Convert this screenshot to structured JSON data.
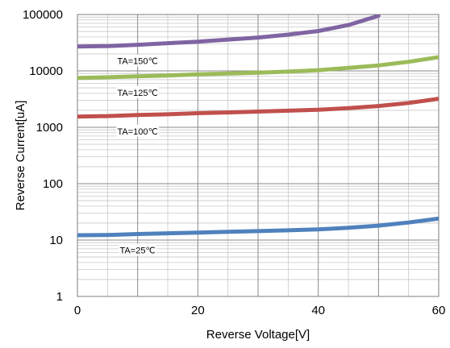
{
  "chart_data": {
    "type": "line",
    "xlabel": "Reverse Voltage[V]",
    "ylabel": "Reverse Current[uA]",
    "x_scale": "linear",
    "y_scale": "log",
    "xlim": [
      0,
      60
    ],
    "ylim": [
      1,
      100000
    ],
    "x_ticks": [
      "0",
      "20",
      "40",
      "60"
    ],
    "y_ticks": [
      "1",
      "10",
      "100",
      "1000",
      "10000",
      "100000"
    ],
    "grid": true,
    "legend": "none",
    "series": [
      {
        "name": "TA=150℃",
        "color": "#8064a2",
        "label_x": 10,
        "x": [
          0,
          5,
          10,
          15,
          20,
          25,
          30,
          35,
          40,
          45,
          50
        ],
        "y": [
          27000,
          27500,
          29000,
          31000,
          33000,
          36000,
          39000,
          44000,
          51000,
          65000,
          95000
        ]
      },
      {
        "name": "TA=125℃",
        "color": "#9bbb59",
        "label_x": 10,
        "x": [
          0,
          5,
          10,
          15,
          20,
          25,
          30,
          35,
          40,
          45,
          50,
          55,
          60
        ],
        "y": [
          7500,
          7700,
          8000,
          8300,
          8700,
          9000,
          9300,
          9700,
          10300,
          11300,
          12500,
          14500,
          17500
        ]
      },
      {
        "name": "TA=100℃",
        "color": "#c0504d",
        "label_x": 10,
        "x": [
          0,
          5,
          10,
          15,
          20,
          25,
          30,
          35,
          40,
          45,
          50,
          55,
          60
        ],
        "y": [
          1550,
          1580,
          1650,
          1700,
          1780,
          1830,
          1900,
          1970,
          2050,
          2180,
          2380,
          2700,
          3200
        ]
      },
      {
        "name": "TA=25℃",
        "color": "#4f81bd",
        "label_x": 10,
        "x": [
          0,
          5,
          10,
          15,
          20,
          25,
          30,
          35,
          40,
          45,
          50,
          55,
          60
        ],
        "y": [
          12.2,
          12.3,
          12.8,
          13.2,
          13.6,
          14,
          14.4,
          14.9,
          15.5,
          16.5,
          18,
          20.5,
          24
        ]
      }
    ]
  }
}
